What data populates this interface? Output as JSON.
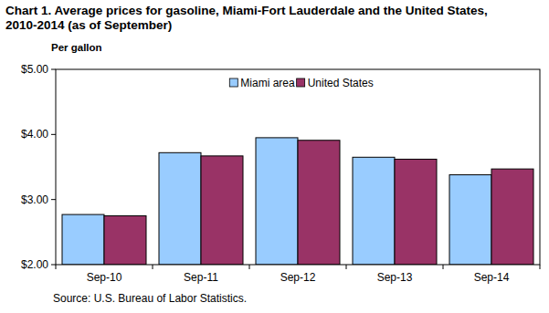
{
  "chart_data": {
    "type": "bar",
    "title": "Chart 1. Average prices for gasoline, Miami-Fort Lauderdale and the United States, 2010-2014 (as of September)",
    "y_label": "Per gallon",
    "annotations": [
      "Source: U.S. Bureau of Labor Statistics."
    ],
    "categories": [
      "Sep-10",
      "Sep-11",
      "Sep-12",
      "Sep-13",
      "Sep-14"
    ],
    "series": [
      {
        "name": "Miami area",
        "color": "#99ccff",
        "values": [
          2.77,
          3.72,
          3.95,
          3.65,
          3.38
        ]
      },
      {
        "name": "United States",
        "color": "#993366",
        "values": [
          2.75,
          3.67,
          3.91,
          3.62,
          3.47
        ]
      }
    ],
    "ylim": [
      2,
      5
    ],
    "yticks": [
      {
        "value": 2,
        "label": "$2.00"
      },
      {
        "value": 3,
        "label": "$3.00"
      },
      {
        "value": 4,
        "label": "$4.00"
      },
      {
        "value": 5,
        "label": "$5.00"
      }
    ],
    "grid": false,
    "legend": "top"
  }
}
